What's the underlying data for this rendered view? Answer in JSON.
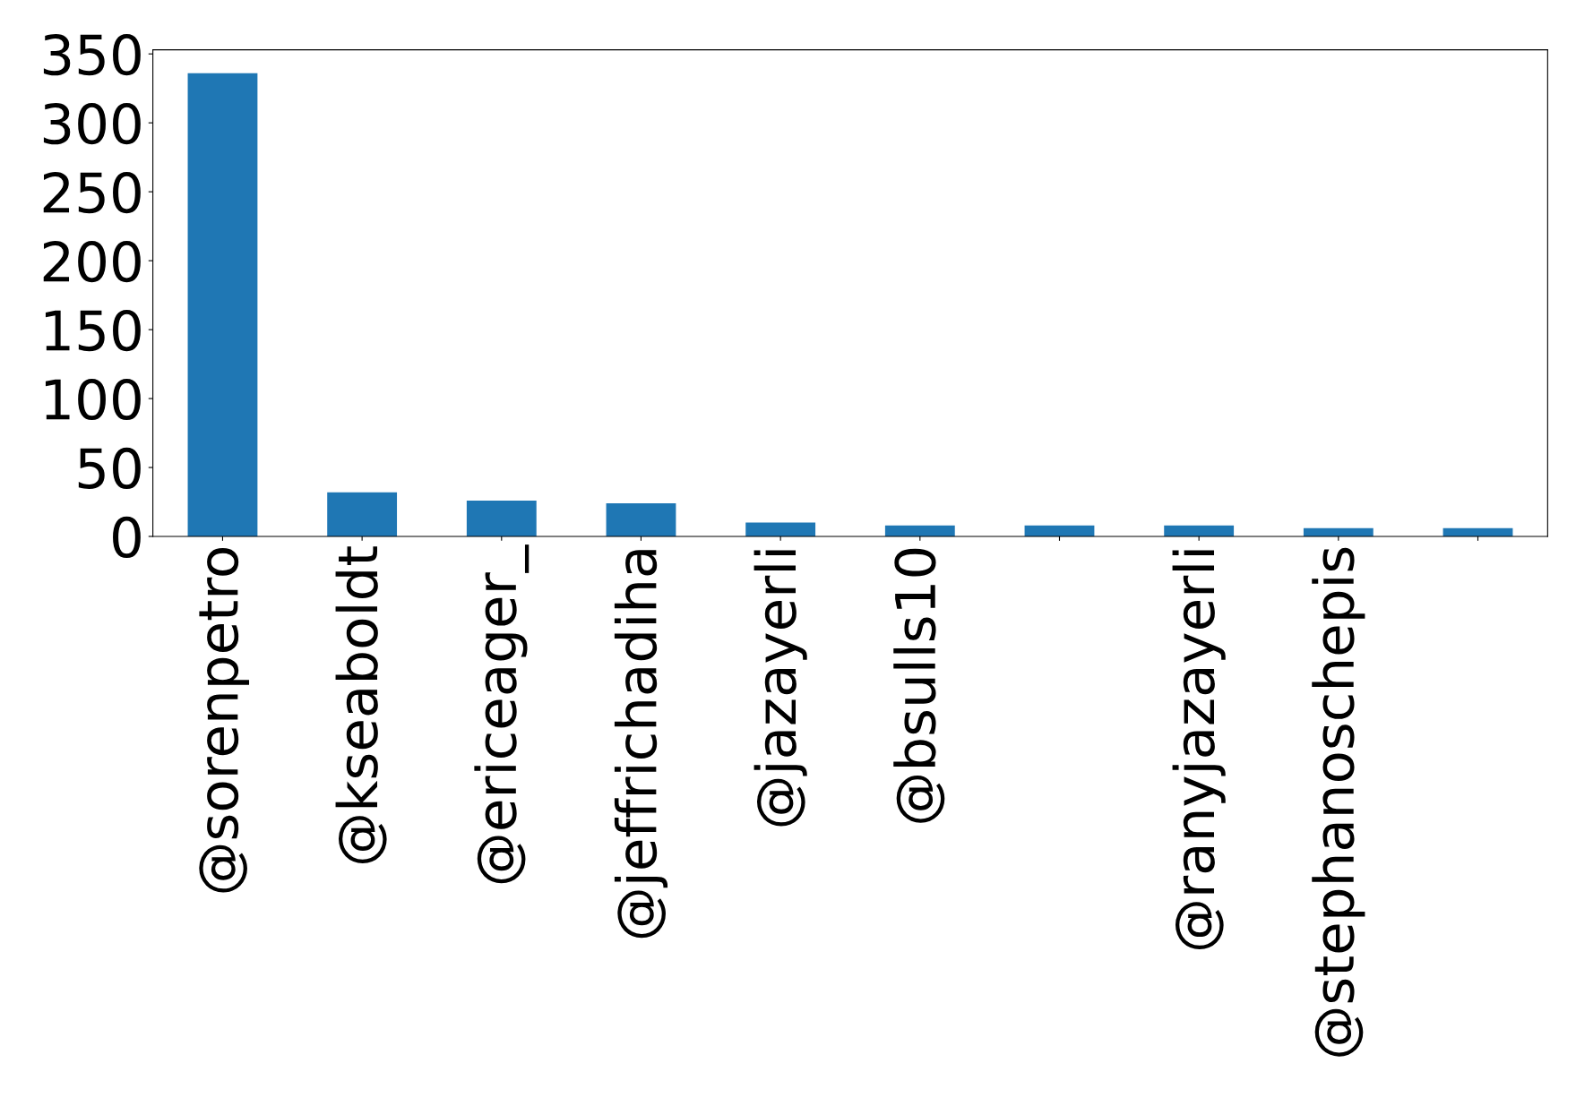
{
  "chart_data": {
    "type": "bar",
    "categories": [
      "@sorenpetro",
      "@kseaboldt",
      "@ericeager_",
      "@jeffrichadiha",
      "@jazayerli",
      "@bsulls10",
      null,
      "@ranyjazayerli",
      "@stephanoschepis",
      null
    ],
    "values": [
      336,
      32,
      26,
      24,
      10,
      8,
      8,
      8,
      6,
      6
    ],
    "color": "#1f77b4",
    "ylim": [
      0,
      353
    ],
    "yticks": [
      0,
      50,
      100,
      150,
      200,
      250,
      300,
      350
    ],
    "grid": false
  }
}
